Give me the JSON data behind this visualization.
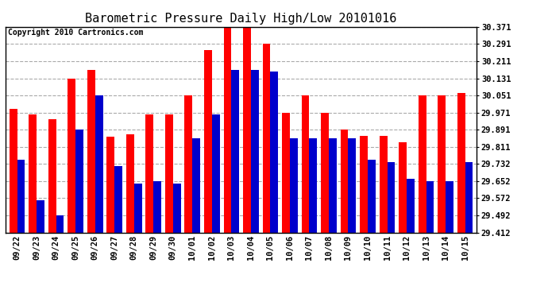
{
  "title": "Barometric Pressure Daily High/Low 20101016",
  "copyright": "Copyright 2010 Cartronics.com",
  "dates": [
    "09/22",
    "09/23",
    "09/24",
    "09/25",
    "09/26",
    "09/27",
    "09/28",
    "09/29",
    "09/30",
    "10/01",
    "10/02",
    "10/03",
    "10/04",
    "10/05",
    "10/06",
    "10/07",
    "10/08",
    "10/09",
    "10/10",
    "10/11",
    "10/12",
    "10/13",
    "10/14",
    "10/15"
  ],
  "highs": [
    29.99,
    29.961,
    29.94,
    30.131,
    30.171,
    29.86,
    29.87,
    29.961,
    29.961,
    30.051,
    30.261,
    30.371,
    30.371,
    30.291,
    29.971,
    30.051,
    29.971,
    29.891,
    29.861,
    29.861,
    29.831,
    30.051,
    30.051,
    30.061
  ],
  "lows": [
    29.751,
    29.561,
    29.491,
    29.891,
    30.051,
    29.721,
    29.641,
    29.651,
    29.641,
    29.851,
    29.961,
    30.171,
    30.171,
    30.161,
    29.851,
    29.851,
    29.851,
    29.851,
    29.751,
    29.741,
    29.661,
    29.651,
    29.651,
    29.741
  ],
  "ymin": 29.412,
  "ymax": 30.371,
  "yticks": [
    29.412,
    29.492,
    29.572,
    29.652,
    29.732,
    29.811,
    29.891,
    29.971,
    30.051,
    30.131,
    30.211,
    30.291,
    30.371
  ],
  "high_color": "#FF0000",
  "low_color": "#0000CC",
  "background_color": "#FFFFFF",
  "grid_color": "#AAAAAA",
  "title_fontsize": 11,
  "copyright_fontsize": 7,
  "tick_fontsize": 7.5
}
